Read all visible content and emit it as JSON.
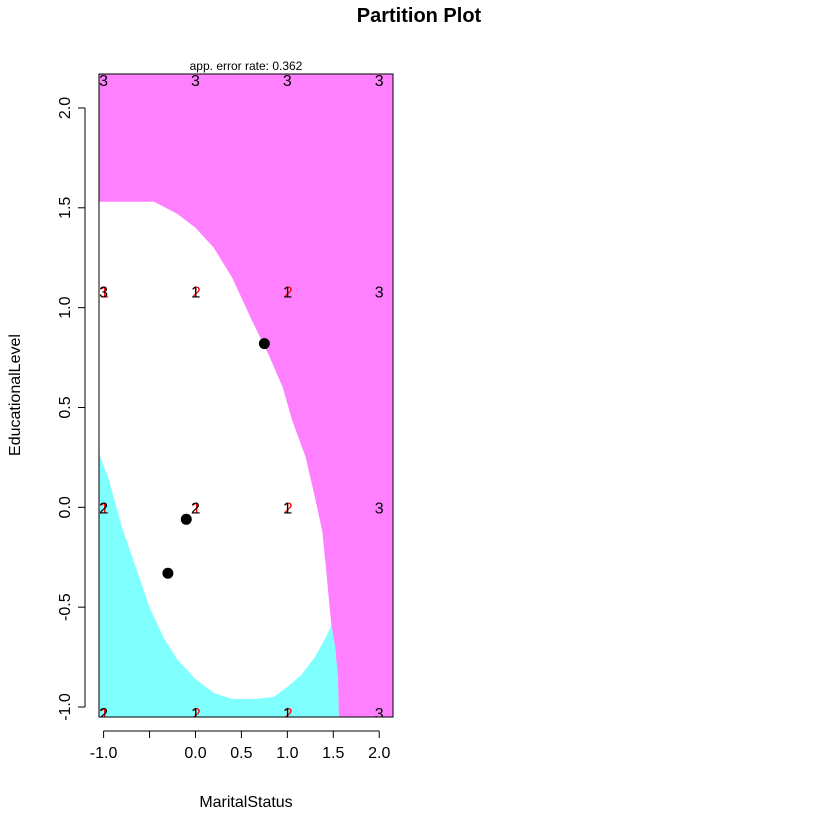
{
  "chart_data": {
    "type": "scatter",
    "title": "Partition Plot",
    "subtitle": "app. error rate: 0.362",
    "xlabel": "MaritalStatus",
    "ylabel": "EducationalLevel",
    "xlim": [
      -1.05,
      2.15
    ],
    "ylim": [
      -1.05,
      2.17
    ],
    "x_ticks": [
      -1.0,
      -0.5,
      0.0,
      0.5,
      1.0,
      1.5,
      2.0
    ],
    "x_tick_labels": [
      "-1.0",
      "",
      "0.0",
      "0.5",
      "1.0",
      "1.5",
      "2.0"
    ],
    "y_ticks": [
      -1.0,
      -0.5,
      0.0,
      0.5,
      1.0,
      1.5,
      2.0
    ],
    "y_tick_labels": [
      "-1.0",
      "-0.5",
      "0.0",
      "0.5",
      "1.0",
      "1.5",
      "2.0"
    ],
    "region_colors": {
      "1": "#80ffff",
      "2": "#ffffff",
      "3": "#ff80ff"
    },
    "region_boundary_1_2": [
      [
        -1.05,
        0.27
      ],
      [
        -0.95,
        0.15
      ],
      [
        -0.8,
        -0.1
      ],
      [
        -0.65,
        -0.3
      ],
      [
        -0.5,
        -0.5
      ],
      [
        -0.35,
        -0.65
      ],
      [
        -0.2,
        -0.76
      ],
      [
        0.0,
        -0.86
      ],
      [
        0.2,
        -0.93
      ],
      [
        0.4,
        -0.96
      ],
      [
        0.65,
        -0.96
      ],
      [
        0.85,
        -0.95
      ],
      [
        1.0,
        -0.9
      ],
      [
        1.15,
        -0.84
      ],
      [
        1.3,
        -0.75
      ],
      [
        1.42,
        -0.65
      ],
      [
        1.48,
        -0.59
      ]
    ],
    "region_1_right_edge": [
      [
        1.48,
        -0.59
      ],
      [
        1.52,
        -0.7
      ],
      [
        1.55,
        -0.85
      ],
      [
        1.56,
        -1.05
      ]
    ],
    "region_boundary_2_3": [
      [
        -1.05,
        1.53
      ],
      [
        -0.45,
        1.53
      ],
      [
        -0.2,
        1.47
      ],
      [
        0.0,
        1.4
      ],
      [
        0.2,
        1.3
      ],
      [
        0.4,
        1.15
      ],
      [
        0.6,
        0.95
      ],
      [
        0.8,
        0.76
      ],
      [
        0.95,
        0.6
      ],
      [
        1.05,
        0.44
      ],
      [
        1.2,
        0.25
      ],
      [
        1.3,
        0.05
      ],
      [
        1.38,
        -0.12
      ],
      [
        1.42,
        -0.3
      ],
      [
        1.46,
        -0.5
      ],
      [
        1.48,
        -0.59
      ],
      [
        1.52,
        -0.7
      ],
      [
        1.55,
        -0.85
      ],
      [
        1.56,
        -1.05
      ]
    ],
    "centers": [
      {
        "x": 0.75,
        "y": 0.82
      },
      {
        "x": -0.1,
        "y": -0.06
      },
      {
        "x": -0.3,
        "y": -0.33
      }
    ],
    "class_points": [
      {
        "x": -1.0,
        "y": 2.14,
        "black": "3"
      },
      {
        "x": 0.0,
        "y": 2.14,
        "black": "3"
      },
      {
        "x": 1.0,
        "y": 2.14,
        "black": "3"
      },
      {
        "x": 2.0,
        "y": 2.14,
        "black": "3"
      },
      {
        "x": -1.0,
        "y": 1.08,
        "black": "3",
        "red": "1"
      },
      {
        "x": 0.0,
        "y": 1.08,
        "black": "1",
        "red": "2"
      },
      {
        "x": 1.0,
        "y": 1.08,
        "black": "1",
        "red": "2"
      },
      {
        "x": 2.0,
        "y": 1.08,
        "black": "3"
      },
      {
        "x": -1.0,
        "y": 0.0,
        "black": "2",
        "red": "1"
      },
      {
        "x": 0.0,
        "y": 0.0,
        "black": "2",
        "red": "1"
      },
      {
        "x": 1.0,
        "y": 0.0,
        "black": "1",
        "red": "2"
      },
      {
        "x": 2.0,
        "y": 0.0,
        "black": "3"
      },
      {
        "x": -1.0,
        "y": -1.03,
        "black": "2",
        "red": "1"
      },
      {
        "x": 0.0,
        "y": -1.03,
        "black": "1",
        "red": "2"
      },
      {
        "x": 1.0,
        "y": -1.03,
        "black": "1",
        "red": "2"
      },
      {
        "x": 2.0,
        "y": -1.03,
        "black": "3"
      }
    ],
    "label_colors": {
      "black": "#000000",
      "red": "#ff0000"
    }
  }
}
